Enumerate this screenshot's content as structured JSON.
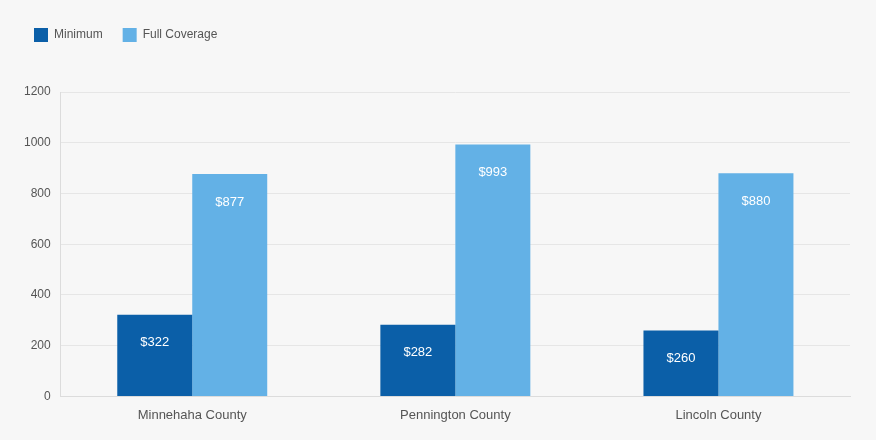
{
  "chart_data": {
    "type": "bar",
    "categories": [
      "Minnehaha County",
      "Pennington County",
      "Lincoln County"
    ],
    "series": [
      {
        "name": "Minimum",
        "color": "#0b5fa8",
        "values": [
          322,
          282,
          260
        ],
        "value_labels": [
          "$322",
          "$282",
          "$260"
        ]
      },
      {
        "name": "Full Coverage",
        "color": "#63b1e6",
        "values": [
          877,
          993,
          880
        ],
        "value_labels": [
          "$877",
          "$993",
          "$880"
        ]
      }
    ],
    "ylim": [
      0,
      1200
    ],
    "yticks": [
      0,
      200,
      400,
      600,
      800,
      1000,
      1200
    ],
    "grid": true,
    "legend": "top-left",
    "data_labels": true
  }
}
